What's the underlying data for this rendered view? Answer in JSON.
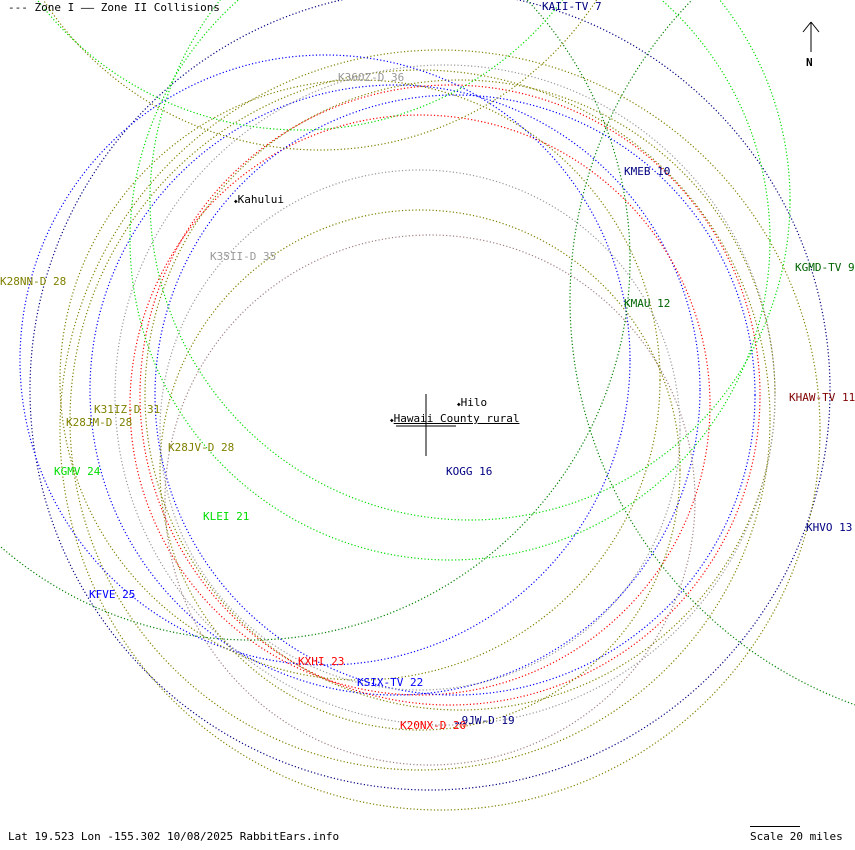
{
  "legend": {
    "zone1": "--- Zone I",
    "zone2": "—— Zone II Collisions"
  },
  "north": "N",
  "footer": "Lat 19.523 Lon -155.302 10/08/2025 RabbitEars.info",
  "scale": "Scale 20 miles",
  "cities": [
    {
      "name": "Kahului"
    },
    {
      "name": "Hilo"
    },
    {
      "name": "Hawaii County rural"
    }
  ],
  "stations": [
    {
      "label": "KAII-TV 7",
      "color": "#000080"
    },
    {
      "label": "K36OZ-D 36",
      "color": "#999999"
    },
    {
      "label": "KMEB 10",
      "color": "#000080"
    },
    {
      "label": "K35II-D 35",
      "color": "#999999"
    },
    {
      "label": "K28NN-D 28",
      "color": "#808000"
    },
    {
      "label": "KGMD-TV 9",
      "color": "#006400"
    },
    {
      "label": "KMAU 12",
      "color": "#006400"
    },
    {
      "label": "KHAW-TV 11",
      "color": "#800000"
    },
    {
      "label": "K31IZ-D 31",
      "color": "#808000"
    },
    {
      "label": "K28JM-D 28",
      "color": "#808000"
    },
    {
      "label": "K28JV-D 28",
      "color": "#808000"
    },
    {
      "label": "KGMV 24",
      "color": "#00dd00"
    },
    {
      "label": "KOGG 16",
      "color": "#000080"
    },
    {
      "label": "KLEI 21",
      "color": "#00dd00"
    },
    {
      "label": "KHVO 13",
      "color": "#000080"
    },
    {
      "label": "KFVE 25",
      "color": "#0000ff"
    },
    {
      "label": "KXHI 23",
      "color": "#ff0000"
    },
    {
      "label": "KSIX-TV 22",
      "color": "#0000ff"
    },
    {
      "label": "K20NX-D 20",
      "color": "#ff0000"
    },
    {
      "label": "…9JW-D 19",
      "color": "#000080"
    }
  ],
  "contour_colors": {
    "navy": "#000080",
    "blue": "#0000ff",
    "red": "#ff0000",
    "olive": "#808000",
    "green": "#00dd00",
    "darkgreen": "#008000",
    "gray": "#999999",
    "rosy": "#a08080"
  }
}
